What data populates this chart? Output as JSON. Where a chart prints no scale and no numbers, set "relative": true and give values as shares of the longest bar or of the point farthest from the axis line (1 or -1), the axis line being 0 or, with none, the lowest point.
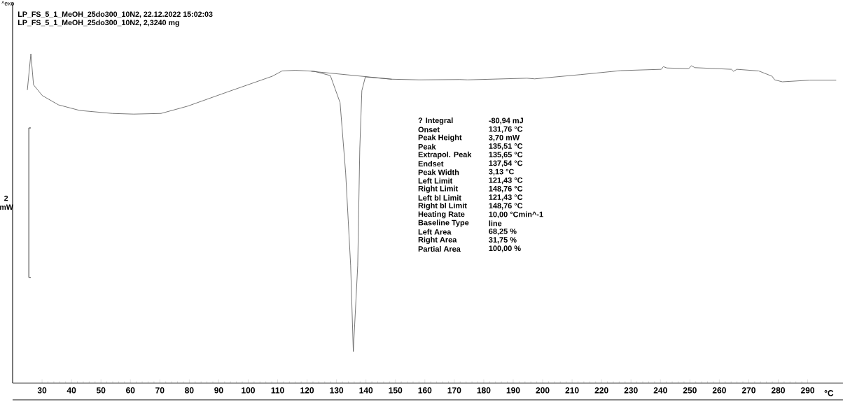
{
  "chart_data": {
    "type": "line",
    "title": "LP_FS_5_1_MeOH_25do300_10N2, 22.12.2022 15:02:03",
    "subtitle": "LP_FS_5_1_MeOH_25do300_10N2, 2,3240 mg",
    "xlabel": "°C",
    "relative": true,
    "marker": "none",
    "line_style": "solid",
    "xlim": [
      20,
      302
    ],
    "xticks": [
      30,
      40,
      50,
      60,
      70,
      80,
      90,
      100,
      110,
      120,
      130,
      140,
      150,
      160,
      170,
      180,
      190,
      200,
      210,
      220,
      230,
      240,
      250,
      260,
      270,
      280,
      290
    ],
    "series": [
      {
        "color": "#555555",
        "x": [
          25.0,
          26.2,
          27.1,
          30.1,
          35.6,
          42.8,
          53.9,
          61.1,
          70.4,
          79.4,
          93.2,
          108.2,
          111.5,
          116.0,
          122.4,
          127.9,
          131.2,
          133.1,
          134.8,
          135.7,
          137.2,
          137.9,
          138.6,
          139.8,
          148.6,
          158.1,
          171.9,
          174.5,
          194.7,
          197.3,
          213.0,
          226.5,
          240.3,
          241.0,
          242.2,
          249.6,
          250.5,
          251.7,
          264.1,
          264.8,
          266.0,
          273.4,
          277.9,
          278.8,
          281.4,
          290.7,
          299.7
        ],
        "values": [
          0.89,
          1.0,
          0.906,
          0.873,
          0.845,
          0.828,
          0.819,
          0.817,
          0.819,
          0.841,
          0.885,
          0.932,
          0.948,
          0.95,
          0.947,
          0.934,
          0.852,
          0.639,
          0.357,
          0.096,
          0.357,
          0.711,
          0.888,
          0.93,
          0.923,
          0.921,
          0.922,
          0.921,
          0.926,
          0.924,
          0.937,
          0.949,
          0.953,
          0.961,
          0.957,
          0.955,
          0.964,
          0.958,
          0.953,
          0.947,
          0.953,
          0.948,
          0.932,
          0.921,
          0.915,
          0.92,
          0.92
        ]
      },
      {
        "type": "line",
        "color": "#555555",
        "x": [
          121.43,
          148.76
        ],
        "values": [
          0.947,
          0.923
        ]
      },
      {
        "type": "line",
        "name": "2 mW",
        "color": "#000000",
        "x": [
          26.2,
          25.5,
          25.5,
          26.2
        ],
        "values": [
          0.775,
          0.775,
          0.321,
          0.321
        ]
      }
    ],
    "annotations": [
      "^exo",
      "? Integral",
      "-80,94 mJ",
      "Onset",
      "131,76 °C",
      "Peak Height",
      "3,70 mW",
      "Peak",
      "135,51 °C",
      "Extrapol. Peak",
      "135,65 °C",
      "Endset",
      "137,54 °C",
      "Peak Width",
      "3,13 °C",
      "Left Limit",
      "121,43 °C",
      "Right Limit",
      "148,76 °C",
      "Left bl Limit",
      "121,43 °C",
      "Right bl Limit",
      "148,76 °C",
      "Heating Rate",
      "10,00 °Cmin^-1",
      "Baseline Type",
      "line",
      "Left Area",
      "68,25 %",
      "Right Area",
      "31,75 %",
      "Partial Area",
      "100,00 %"
    ]
  }
}
